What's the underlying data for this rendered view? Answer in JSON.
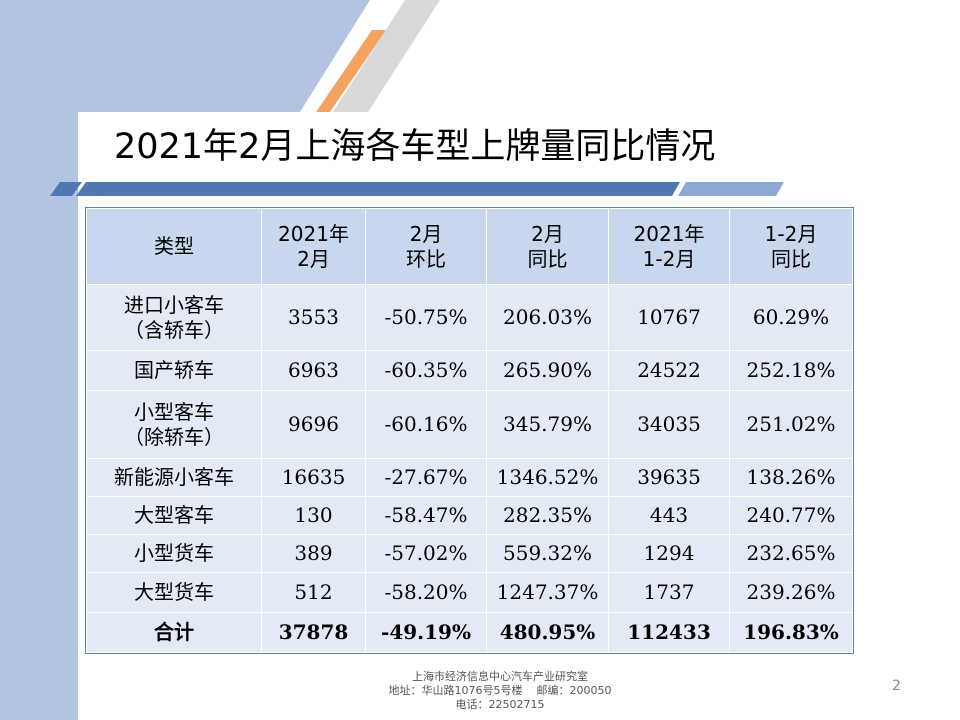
{
  "slide": {
    "title": "2021年2月上海各车型上牌量同比情况",
    "page_number": "2"
  },
  "table": {
    "headers": [
      [
        "类型"
      ],
      [
        "2021年",
        "2月"
      ],
      [
        "2月",
        "环比"
      ],
      [
        "2月",
        "同比"
      ],
      [
        "2021年",
        "1-2月"
      ],
      [
        "1-2月",
        "同比"
      ]
    ],
    "rows": [
      {
        "type": [
          "进口小客车",
          "（含轿车）"
        ],
        "feb2021": "3553",
        "mom": "-50.75%",
        "yoy": "206.03%",
        "janfeb": "10767",
        "janfeb_yoy": "60.29%"
      },
      {
        "type": [
          "国产轿车"
        ],
        "feb2021": "6963",
        "mom": "-60.35%",
        "yoy": "265.90%",
        "janfeb": "24522",
        "janfeb_yoy": "252.18%"
      },
      {
        "type": [
          "小型客车",
          "（除轿车）"
        ],
        "feb2021": "9696",
        "mom": "-60.16%",
        "yoy": "345.79%",
        "janfeb": "34035",
        "janfeb_yoy": "251.02%"
      },
      {
        "type": [
          "新能源小客车"
        ],
        "feb2021": "16635",
        "mom": "-27.67%",
        "yoy": "1346.52%",
        "janfeb": "39635",
        "janfeb_yoy": "138.26%"
      },
      {
        "type": [
          "大型客车"
        ],
        "feb2021": "130",
        "mom": "-58.47%",
        "yoy": "282.35%",
        "janfeb": "443",
        "janfeb_yoy": "240.77%"
      },
      {
        "type": [
          "小型货车"
        ],
        "feb2021": "389",
        "mom": "-57.02%",
        "yoy": "559.32%",
        "janfeb": "1294",
        "janfeb_yoy": "232.65%"
      },
      {
        "type": [
          "大型货车"
        ],
        "feb2021": "512",
        "mom": "-58.20%",
        "yoy": "1247.37%",
        "janfeb": "1737",
        "janfeb_yoy": "239.26%"
      }
    ],
    "total": {
      "type": "合计",
      "feb2021": "37878",
      "mom": "-49.19%",
      "yoy": "480.95%",
      "janfeb": "112433",
      "janfeb_yoy": "196.83%"
    }
  },
  "footer": {
    "line1": "上海市经济信息中心汽车产业研究室",
    "line2": "地址：华山路1076号5号楼    邮编：200050",
    "line3": "电话：22502715"
  },
  "colors": {
    "left_band": "#b2c4e0",
    "header_cell": "#c8d7ee",
    "body_cell": "#e4eaf5",
    "accent_orange": "#f4a460",
    "stripe_blue": "#4f78b5"
  }
}
